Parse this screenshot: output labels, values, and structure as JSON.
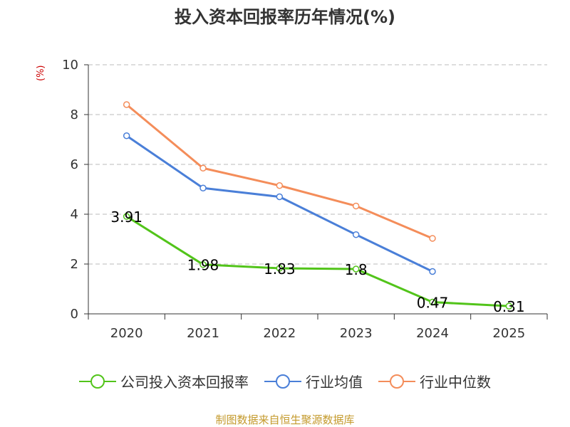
{
  "chart_data": {
    "type": "line",
    "title": "投入资本回报率历年情况(%)",
    "ylabel": "(%)",
    "xlabel": "",
    "categories": [
      "2020",
      "2021",
      "2022",
      "2023",
      "2024",
      "2025"
    ],
    "ylim": [
      0,
      10
    ],
    "yticks": [
      0,
      2,
      4,
      6,
      8,
      10
    ],
    "grid": true,
    "legend_position": "bottom",
    "series": [
      {
        "name": "公司投入资本回报率",
        "color": "#52c41a",
        "values": [
          3.91,
          1.98,
          1.83,
          1.8,
          0.47,
          0.31
        ],
        "labels": [
          "3.91",
          "1.98",
          "1.83",
          "1.8",
          "0.47",
          "0.31"
        ]
      },
      {
        "name": "行业均值",
        "color": "#4a7fd8",
        "values": [
          7.15,
          5.05,
          4.7,
          3.18,
          1.7,
          null
        ]
      },
      {
        "name": "行业中位数",
        "color": "#f48d5a",
        "values": [
          8.4,
          5.85,
          5.15,
          4.33,
          3.03,
          null
        ]
      }
    ],
    "source": "制图数据来自恒生聚源数据库"
  }
}
